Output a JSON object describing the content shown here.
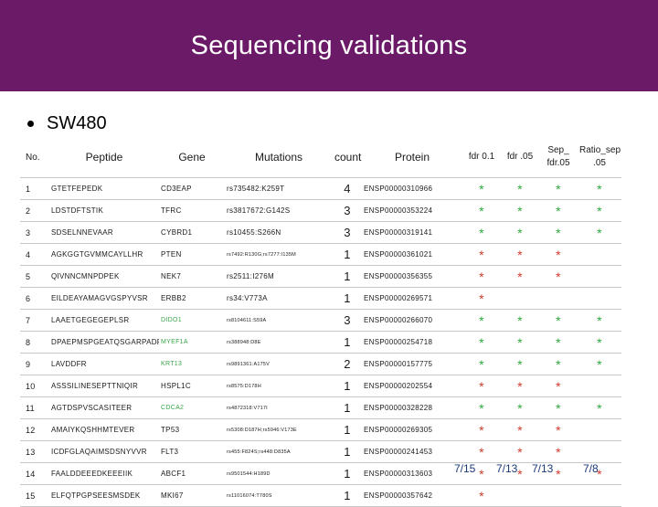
{
  "header": {
    "title": "Sequencing validations"
  },
  "subtitle": "SW480",
  "table": {
    "headers": [
      "No.",
      "Peptide",
      "Gene",
      "Mutations",
      "count",
      "Protein",
      "fdr 0.1",
      "fdr .05",
      "Sep_ fdr.05",
      "Ratio_sep .05"
    ],
    "rows": [
      {
        "no": "1",
        "peptide": "GTETFEPEDK",
        "gene": "CD3EAP",
        "mutations": "rs735482:K259T",
        "count": "4",
        "protein": "ENSP00000310966",
        "stars": [
          "g",
          "g",
          "g",
          "g"
        ]
      },
      {
        "no": "2",
        "peptide": "LDSTDFTSTIK",
        "gene": "TFRC",
        "mutations": "rs3817672:G142S",
        "count": "3",
        "protein": "ENSP00000353224",
        "stars": [
          "g",
          "g",
          "g",
          "g"
        ]
      },
      {
        "no": "3",
        "peptide": "SDSELNNEVAAR",
        "gene": "CYBRD1",
        "mutations": "rs10455:S266N",
        "count": "3",
        "protein": "ENSP00000319141",
        "stars": [
          "g",
          "g",
          "g",
          "g"
        ]
      },
      {
        "no": "4",
        "peptide": "AGKGGTGVMMCAYLLHR",
        "gene": "PTEN",
        "mutations": "rs7492:R130G;rs7277:I135M",
        "count": "1",
        "protein": "ENSP00000361021",
        "stars": [
          "r",
          "r",
          "r",
          ""
        ]
      },
      {
        "no": "5",
        "peptide": "QIVNNCMNPDPEK",
        "gene": "NEK7",
        "mutations": "rs2511:I276M",
        "count": "1",
        "protein": "ENSP00000356355",
        "stars": [
          "r",
          "r",
          "r",
          ""
        ]
      },
      {
        "no": "6",
        "peptide": "EILDEAYAMAGVGSPYVSR",
        "gene": "ERBB2",
        "mutations": "rs34:V773A",
        "count": "1",
        "protein": "ENSP00000269571",
        "stars": [
          "r",
          "",
          "",
          ""
        ]
      },
      {
        "no": "7",
        "peptide": "LAAETGEGEGEPLSR",
        "gene": "DIDO1",
        "mutations": "rs8104611:S59A",
        "count": "3",
        "protein": "ENSP00000266070",
        "stars": [
          "g",
          "g",
          "g",
          "g"
        ]
      },
      {
        "no": "8",
        "peptide": "DPAEPMSPGEATQSGARPADR",
        "gene": "MYEF1A",
        "mutations": "rs388948:D8E",
        "count": "1",
        "protein": "ENSP00000254718",
        "stars": [
          "g",
          "g",
          "g",
          "g"
        ]
      },
      {
        "no": "9",
        "peptide": "LAVDDFR",
        "gene": "KRT13",
        "mutations": "rs9891361:A175V",
        "count": "2",
        "protein": "ENSP00000157775",
        "stars": [
          "g",
          "g",
          "g",
          "g"
        ]
      },
      {
        "no": "10",
        "peptide": "ASSSILINESEPTTNIQIR",
        "gene": "HSPL1C",
        "mutations": "rs8575:D178H",
        "count": "1",
        "protein": "ENSP00000202554",
        "stars": [
          "r",
          "r",
          "r",
          ""
        ]
      },
      {
        "no": "11",
        "peptide": "AGTDSPVSCASITEER",
        "gene": "CDCA2",
        "mutations": "rs4872318:V717I",
        "count": "1",
        "protein": "ENSP00000328228",
        "stars": [
          "g",
          "g",
          "g",
          "g"
        ]
      },
      {
        "no": "12",
        "peptide": "AMAIYKQSHHMTEVER",
        "gene": "TP53",
        "mutations": "rs5308:D187H;rs5946:V173E",
        "count": "1",
        "protein": "ENSP00000269305",
        "stars": [
          "r",
          "r",
          "r",
          ""
        ]
      },
      {
        "no": "13",
        "peptide": "ICDFGLAQAIMSDSNYVVR",
        "gene": "FLT3",
        "mutations": "rs455:F824S;rs448:D835A",
        "count": "1",
        "protein": "ENSP00000241453",
        "stars": [
          "r",
          "r",
          "r",
          ""
        ]
      },
      {
        "no": "14",
        "peptide": "FAALDDEEEDKEEEIIK",
        "gene": "ABCF1",
        "mutations": "rs9501544:H189D",
        "count": "1",
        "protein": "ENSP00000313603",
        "stars": [
          "r",
          "r",
          "r",
          "r"
        ]
      },
      {
        "no": "15",
        "peptide": "ELFQTPGPSEESMSDEK",
        "gene": "MKI67",
        "mutations": "rs11016074:T780S",
        "count": "1",
        "protein": "ENSP00000357642",
        "stars": [
          "r",
          "",
          "",
          ""
        ]
      }
    ]
  },
  "footer": {
    "fdr01": "7/15",
    "fdr05": "7/13",
    "sep": "7/13",
    "ratio": "7/8"
  },
  "colors": {
    "banner": "#6b1a68",
    "star_green": "#2eaa3e",
    "star_red": "#d43a2e"
  }
}
